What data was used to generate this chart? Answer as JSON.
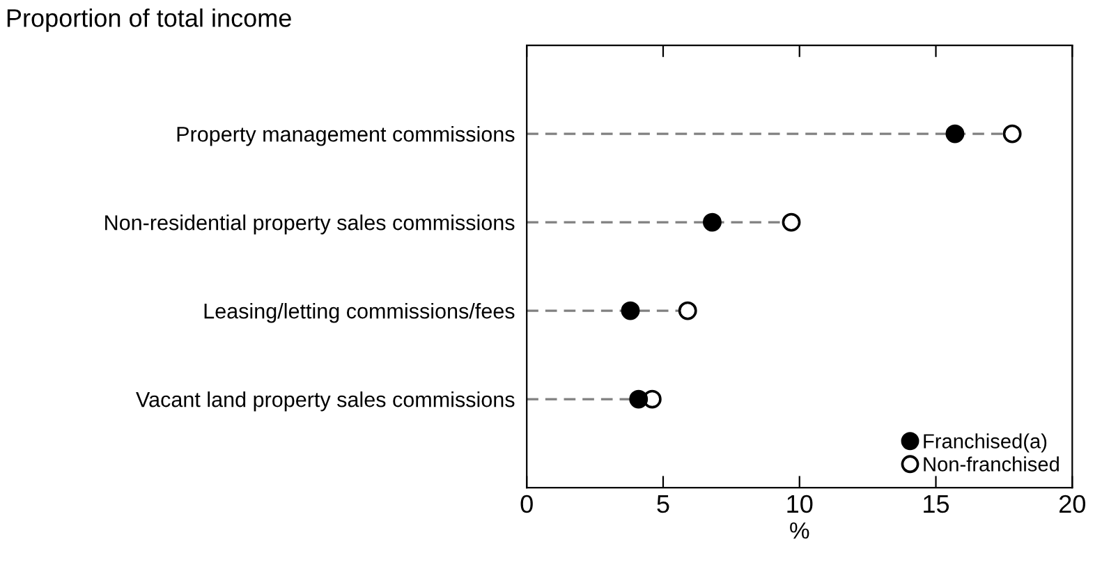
{
  "chart_data": {
    "type": "scatter",
    "title": "Proportion of total income",
    "xlabel": "%",
    "orientation": "horizontal",
    "categories": [
      "Property management commissions",
      "Non-residential property sales commissions",
      "Leasing/letting commissions/fees",
      "Vacant land property sales commissions"
    ],
    "series": [
      {
        "name": "Non-franchised",
        "type": "lollipop",
        "color": "#ffffff",
        "line_style": "dashed",
        "values": [
          17.8,
          9.7,
          5.9,
          4.6
        ]
      },
      {
        "name": "Franchised(a)",
        "color": "#000000",
        "values": [
          15.7,
          6.8,
          3.8,
          4.1
        ]
      }
    ],
    "xlim": [
      0,
      20
    ],
    "xticks": [
      0,
      5,
      10,
      15,
      20
    ],
    "marker": "circle",
    "grid": false,
    "legend": "bottom right"
  }
}
